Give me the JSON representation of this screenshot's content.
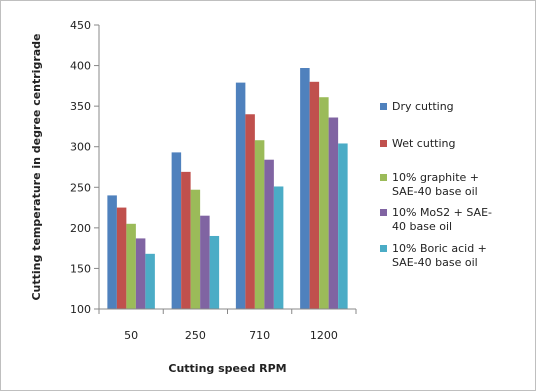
{
  "chart_data": {
    "type": "bar",
    "title": "",
    "xlabel": "Cutting speed RPM",
    "ylabel": "Cutting temperature in degree centrigrade",
    "categories": [
      "50",
      "250",
      "710",
      "1200"
    ],
    "ylim": [
      100,
      450
    ],
    "yticks": [
      "100",
      "150",
      "200",
      "250",
      "300",
      "350",
      "400",
      "450"
    ],
    "grid": false,
    "legend_position": "right",
    "series": [
      {
        "name": "Dry cutting",
        "label_lines": [
          "Dry cutting"
        ],
        "color": "#4f81bd",
        "values": [
          240,
          293,
          379,
          397
        ]
      },
      {
        "name": "Wet cutting",
        "label_lines": [
          "Wet cutting"
        ],
        "color": "#c0504d",
        "values": [
          225,
          269,
          340,
          380
        ]
      },
      {
        "name": "10% graphite + SAE-40 base oil",
        "label_lines": [
          "10% graphite +",
          "SAE-40  base oil"
        ],
        "color": "#9bbb59",
        "values": [
          205,
          247,
          308,
          361
        ]
      },
      {
        "name": "10% MoS2 + SAE-40 base oil",
        "label_lines": [
          "10% MoS2 + SAE-",
          "40 base oil"
        ],
        "color": "#8064a2",
        "values": [
          187,
          215,
          284,
          336
        ]
      },
      {
        "name": "10% Boric acid + SAE-40 base oil",
        "label_lines": [
          "10% Boric acid +",
          "SAE-40 base oil"
        ],
        "color": "#4bacc6",
        "values": [
          168,
          190,
          251,
          304
        ]
      }
    ]
  }
}
